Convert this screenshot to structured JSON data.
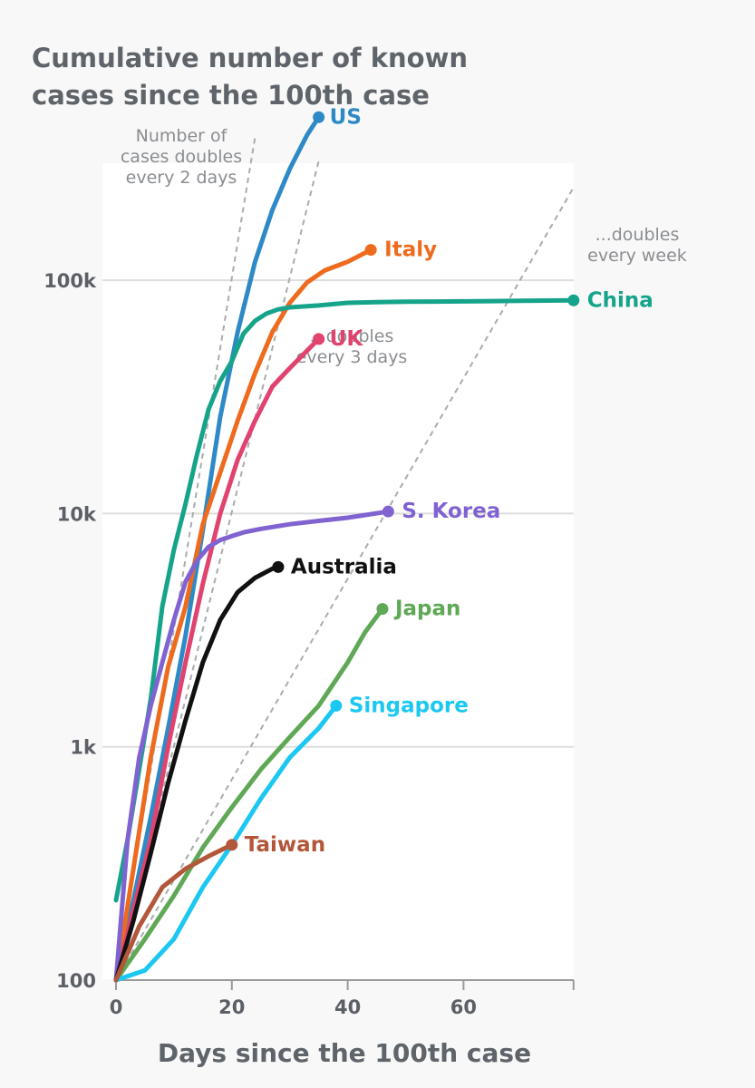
{
  "chart_data": {
    "type": "line",
    "title": "Cumulative number of known cases since the 100th case",
    "xlabel": "Days since the 100th case",
    "ylabel": "",
    "yscale": "log",
    "xlim": [
      0,
      79
    ],
    "ylim": [
      100,
      400000
    ],
    "grid": "horizontal",
    "x_ticks": [
      {
        "value": 0,
        "label": "0"
      },
      {
        "value": 20,
        "label": "20"
      },
      {
        "value": 40,
        "label": "40"
      },
      {
        "value": 60,
        "label": "60"
      }
    ],
    "y_ticks": [
      {
        "value": 100,
        "label": "100"
      },
      {
        "value": 1000,
        "label": "1k"
      },
      {
        "value": 10000,
        "label": "10k"
      },
      {
        "value": 100000,
        "label": "100k"
      }
    ],
    "reference_lines": [
      {
        "name": "Number of cases doubles every 2 days",
        "doubling_days": 2,
        "label_lines": [
          "Number of",
          "cases doubles",
          "every 2 days"
        ]
      },
      {
        "name": "...doubles every 3 days",
        "doubling_days": 3,
        "label_lines": [
          "...doubles",
          "every 3 days"
        ]
      },
      {
        "name": "...doubles every week",
        "doubling_days": 7,
        "label_lines": [
          "...doubles",
          "every week"
        ]
      }
    ],
    "series": [
      {
        "name": "US",
        "color": "#2e8ac6",
        "x": [
          0,
          3,
          6,
          9,
          12,
          15,
          18,
          21,
          24,
          27,
          30,
          33,
          35
        ],
        "y": [
          100,
          220,
          500,
          1200,
          3000,
          8500,
          26000,
          60000,
          120000,
          200000,
          300000,
          420000,
          500000
        ]
      },
      {
        "name": "Italy",
        "color": "#ee6b1e",
        "x": [
          0,
          3,
          6,
          9,
          12,
          15,
          18,
          21,
          24,
          27,
          30,
          33,
          36,
          40,
          44
        ],
        "y": [
          100,
          300,
          900,
          2200,
          4000,
          9000,
          15000,
          25000,
          40000,
          60000,
          80000,
          98000,
          110000,
          120000,
          135000
        ]
      },
      {
        "name": "China",
        "color": "#15a48a",
        "x": [
          0,
          2,
          4,
          6,
          8,
          10,
          12,
          14,
          16,
          18,
          20,
          22,
          24,
          26,
          28,
          30,
          35,
          40,
          45,
          50,
          55,
          60,
          65,
          70,
          79
        ],
        "y": [
          220,
          400,
          800,
          1600,
          4000,
          7000,
          11000,
          18000,
          28000,
          37000,
          45000,
          59000,
          67000,
          72000,
          75000,
          76500,
          78000,
          80000,
          80500,
          80900,
          81000,
          81200,
          81400,
          81600,
          82000
        ]
      },
      {
        "name": "UK",
        "color": "#e0436e",
        "x": [
          0,
          3,
          6,
          9,
          12,
          15,
          18,
          21,
          24,
          27,
          30,
          33,
          35
        ],
        "y": [
          100,
          200,
          400,
          1000,
          2300,
          5000,
          10000,
          17000,
          25000,
          35000,
          42000,
          50000,
          56000
        ]
      },
      {
        "name": "S. Korea",
        "color": "#8063d1",
        "x": [
          0,
          2,
          4,
          6,
          8,
          10,
          12,
          14,
          16,
          18,
          20,
          22,
          25,
          30,
          35,
          40,
          47
        ],
        "y": [
          100,
          400,
          900,
          1500,
          2300,
          3500,
          5100,
          6300,
          7200,
          7700,
          8000,
          8300,
          8600,
          9000,
          9300,
          9600,
          10200
        ]
      },
      {
        "name": "Australia",
        "color": "#111111",
        "x": [
          0,
          3,
          6,
          9,
          12,
          15,
          18,
          21,
          24,
          27,
          28
        ],
        "y": [
          100,
          180,
          350,
          700,
          1300,
          2300,
          3500,
          4600,
          5300,
          5800,
          5900
        ]
      },
      {
        "name": "Japan",
        "color": "#5fa856",
        "x": [
          0,
          5,
          10,
          15,
          20,
          25,
          30,
          35,
          40,
          43,
          46
        ],
        "y": [
          100,
          150,
          230,
          370,
          550,
          800,
          1100,
          1500,
          2300,
          3100,
          3900
        ]
      },
      {
        "name": "Singapore",
        "color": "#1cc8f2",
        "x": [
          0,
          5,
          10,
          15,
          20,
          25,
          30,
          35,
          38
        ],
        "y": [
          100,
          110,
          150,
          250,
          380,
          600,
          900,
          1200,
          1500
        ]
      },
      {
        "name": "Taiwan",
        "color": "#b3573a",
        "x": [
          0,
          4,
          8,
          12,
          16,
          20
        ],
        "y": [
          100,
          170,
          250,
          300,
          340,
          380
        ]
      }
    ]
  }
}
